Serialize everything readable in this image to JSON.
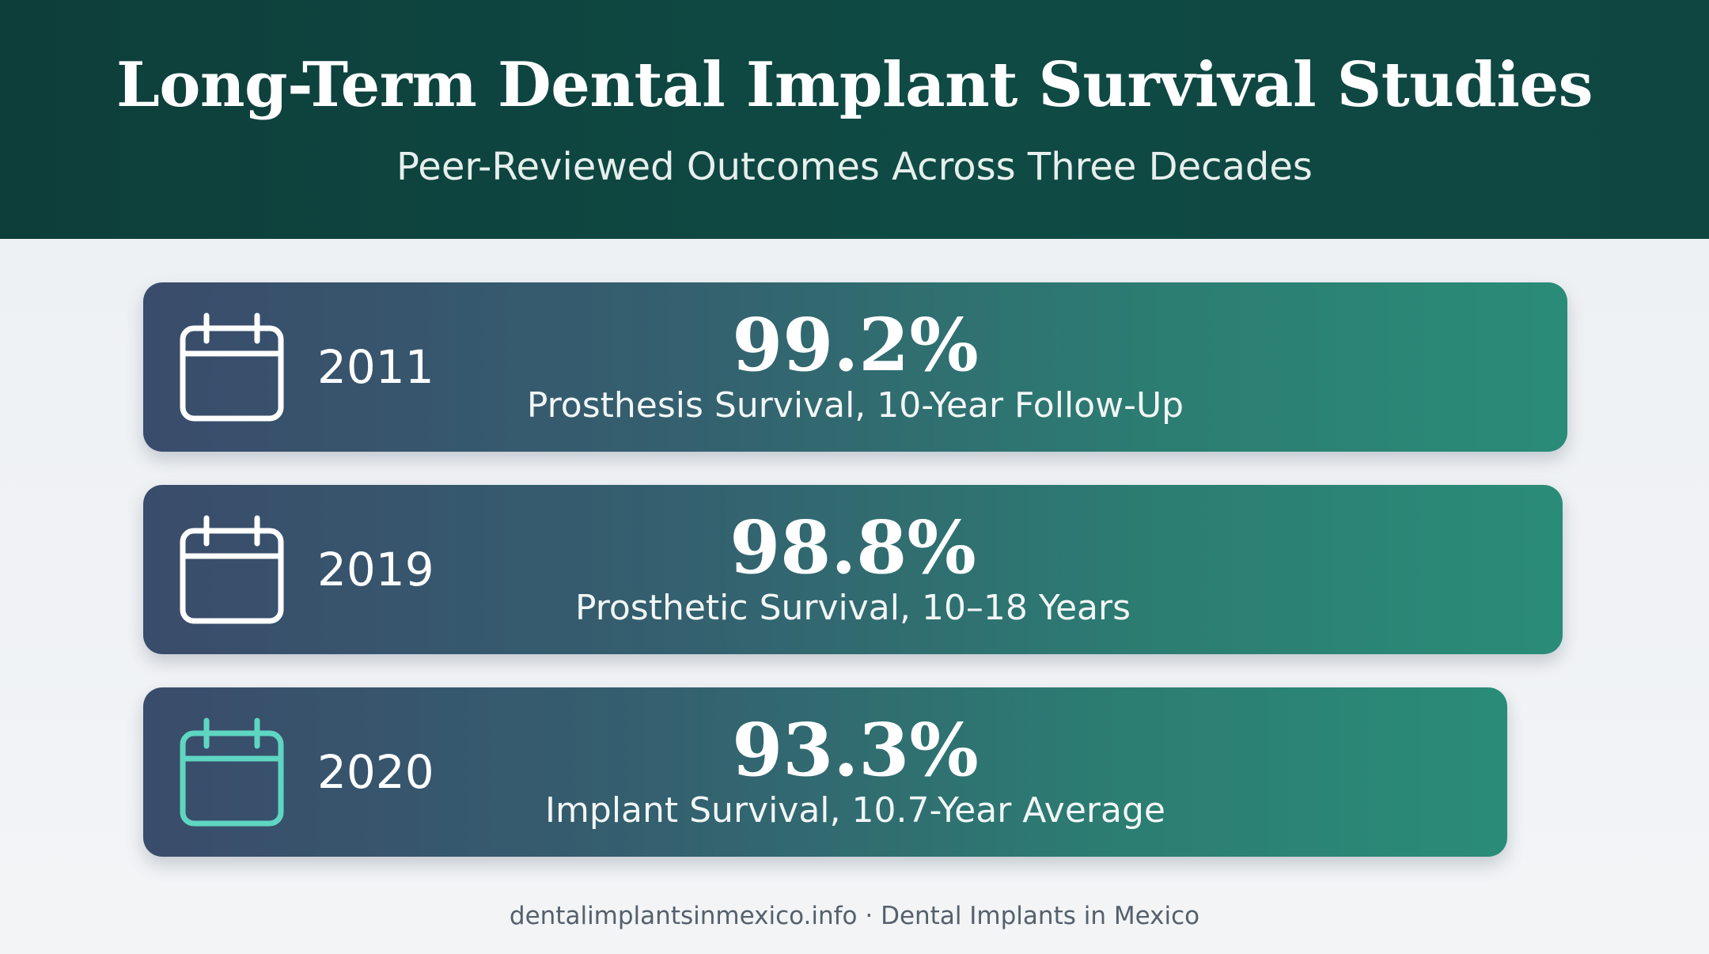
{
  "header": {
    "title": "Long-Term Dental Implant Survival Studies",
    "subtitle": "Peer-Reviewed Outcomes Across Three Decades"
  },
  "studies": [
    {
      "year": "2011",
      "value": "99.2%",
      "description": "Prosthesis Survival, 10-Year Follow-Up",
      "icon": "calendar-icon",
      "icon_color": "#ffffff"
    },
    {
      "year": "2019",
      "value": "98.8%",
      "description": "Prosthetic Survival, 10–18 Years",
      "icon": "calendar-icon",
      "icon_color": "#ffffff"
    },
    {
      "year": "2020",
      "value": "93.3%",
      "description": "Implant Survival, 10.7-Year Average",
      "icon": "calendar-icon",
      "icon_color": "#5fd6c2"
    }
  ],
  "footer": {
    "text": "dentalimplantsinmexico.info · Dental Implants in Mexico"
  },
  "colors": {
    "header_bg": "#0f4a44",
    "card_gradient_start": "#3a4c6b",
    "card_gradient_end": "#2a8c78",
    "page_bg": "#eef1f4"
  }
}
